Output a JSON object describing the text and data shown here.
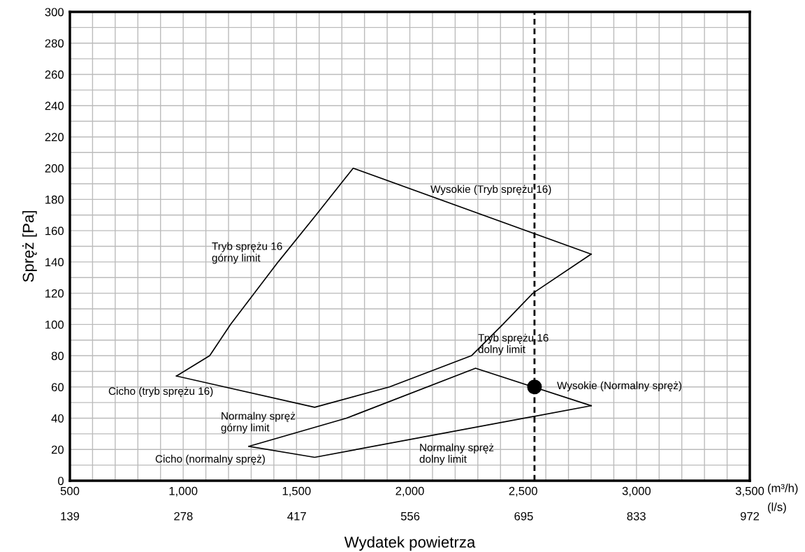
{
  "chart_data": {
    "type": "line",
    "xlabel": "Wydatek powietrza",
    "ylabel": "Spręż [Pa]",
    "xlim": [
      500,
      3500
    ],
    "xticks": [
      500,
      {
        "value": 600,
        "label": null
      },
      {
        "value": 700,
        "label": null
      },
      {
        "value": 800,
        "label": null
      },
      {
        "value": 900,
        "label": null
      },
      {
        "value": 1000,
        "label": "1,000"
      },
      {
        "value": 1100,
        "label": null
      },
      {
        "value": 1200,
        "label": null
      },
      {
        "value": 1300,
        "label": null
      },
      {
        "value": 1400,
        "label": null
      },
      {
        "value": 1500,
        "label": "1,500"
      },
      {
        "value": 1600,
        "label": null
      },
      {
        "value": 1700,
        "label": null
      },
      {
        "value": 1800,
        "label": null
      },
      {
        "value": 1900,
        "label": null
      },
      {
        "value": 2000,
        "label": "2,000"
      },
      {
        "value": 2100,
        "label": null
      },
      {
        "value": 2200,
        "label": null
      },
      {
        "value": 2300,
        "label": null
      },
      {
        "value": 2400,
        "label": null
      },
      {
        "value": 2500,
        "label": "2,500"
      },
      {
        "value": 2600,
        "label": null
      },
      {
        "value": 2700,
        "label": null
      },
      {
        "value": 2800,
        "label": null
      },
      {
        "value": 2900,
        "label": null
      },
      {
        "value": 3000,
        "label": "3,000"
      },
      {
        "value": 3100,
        "label": null
      },
      {
        "value": 3200,
        "label": null
      },
      {
        "value": 3300,
        "label": null
      },
      {
        "value": 3400,
        "label": null
      },
      {
        "value": 3500,
        "label": "3,500"
      }
    ],
    "x2lim": [
      139,
      972
    ],
    "x2ticks": [
      139,
      278,
      417,
      556,
      695,
      833,
      972
    ],
    "ylim": [
      0,
      300
    ],
    "yticks": [
      0,
      {
        "value": 10,
        "label": null
      },
      20,
      {
        "value": 30,
        "label": null
      },
      40,
      {
        "value": 50,
        "label": null
      },
      60,
      {
        "value": 70,
        "label": null
      },
      80,
      {
        "value": 90,
        "label": null
      },
      100,
      {
        "value": 110,
        "label": null
      },
      120,
      {
        "value": 130,
        "label": null
      },
      140,
      {
        "value": 150,
        "label": null
      },
      160,
      {
        "value": 170,
        "label": null
      },
      180,
      {
        "value": 190,
        "label": null
      },
      200,
      {
        "value": 210,
        "label": null
      },
      220,
      {
        "value": 230,
        "label": null
      },
      240,
      {
        "value": 250,
        "label": null
      },
      260,
      {
        "value": 270,
        "label": null
      },
      280,
      {
        "value": 290,
        "label": null
      },
      300
    ],
    "grid": true,
    "series": [
      {
        "color": "#000000",
        "x": [
          970,
          1117,
          1209,
          1419,
          1586,
          1750,
          2800
        ],
        "values": [
          67,
          80,
          100,
          140,
          170,
          200,
          145
        ]
      },
      {
        "color": "#000000",
        "x": [
          970,
          1580,
          1910,
          2272,
          2410,
          2543,
          2800
        ],
        "values": [
          67,
          47,
          60,
          80,
          100,
          120,
          145
        ]
      },
      {
        "color": "#000000",
        "x": [
          1290,
          1720,
          2290,
          2800
        ],
        "values": [
          22,
          40,
          72,
          48
        ]
      },
      {
        "color": "#000000",
        "x": [
          1290,
          1580,
          2800
        ],
        "values": [
          22,
          15,
          48
        ]
      },
      {
        "type": "scatter",
        "marker": "circle",
        "color": "#000000",
        "x": [
          2550
        ],
        "values": [
          60
        ]
      }
    ],
    "ref_lines": [
      {
        "axis": "x",
        "value": 2550,
        "color": "#000000",
        "line_style": "dashed"
      }
    ],
    "annotations": [
      "Wysokie (Tryb sprężu 16)",
      "Tryb sprężu 16\ngórny limit",
      "Tryb sprężu 16\ndolny limit",
      "Wysokie (Normalny spręż)",
      "Cicho (tryb sprężu 16)",
      "Normalny spręż\ngórny limit",
      "Cicho (normalny spręż)",
      "Normalny spręż\ndolny limit",
      "(m³/h)",
      "(l/s)"
    ]
  }
}
